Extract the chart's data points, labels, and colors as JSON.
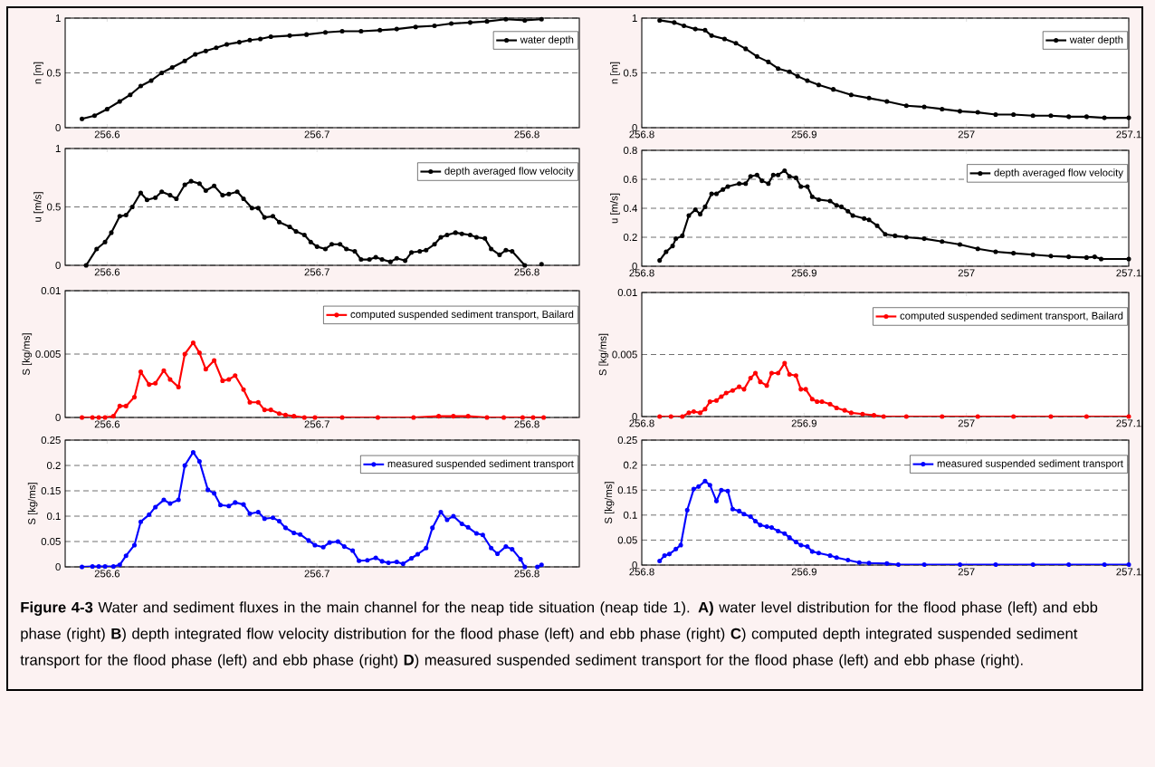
{
  "chart_data": [
    {
      "type": "line",
      "ylabel": "n [m]",
      "xlim": [
        256.58,
        256.825
      ],
      "ylim": [
        0,
        1
      ],
      "xticks": [
        256.6,
        256.7,
        256.8
      ],
      "yticks": [
        0,
        0.5,
        1
      ],
      "grid": "y",
      "legend": "top right",
      "marker": "circle",
      "line_style": "solid",
      "x": [
        256.588,
        256.594,
        256.6,
        256.606,
        256.611,
        256.616,
        256.621,
        256.626,
        256.631,
        256.637,
        256.642,
        256.647,
        256.652,
        256.657,
        256.663,
        256.668,
        256.673,
        256.678,
        256.687,
        256.695,
        256.704,
        256.712,
        256.721,
        256.73,
        256.738,
        256.747,
        256.756,
        256.764,
        256.773,
        256.781,
        256.79,
        256.799,
        256.807
      ],
      "series": [
        {
          "name": "water depth",
          "color": "#000000",
          "values": [
            0.08,
            0.11,
            0.17,
            0.24,
            0.3,
            0.38,
            0.43,
            0.5,
            0.55,
            0.61,
            0.67,
            0.7,
            0.73,
            0.76,
            0.78,
            0.8,
            0.81,
            0.83,
            0.84,
            0.85,
            0.87,
            0.88,
            0.88,
            0.89,
            0.9,
            0.92,
            0.93,
            0.95,
            0.96,
            0.97,
            0.99,
            0.98,
            0.99
          ]
        }
      ]
    },
    {
      "type": "line",
      "ylabel": "n [m]",
      "xlim": [
        256.8,
        257.1
      ],
      "ylim": [
        0,
        1
      ],
      "xticks": [
        256.8,
        256.9,
        257,
        257.1
      ],
      "yticks": [
        0,
        0.5,
        1
      ],
      "grid": "y",
      "legend": "top right",
      "marker": "circle",
      "line_style": "solid",
      "x": [
        256.811,
        256.82,
        256.826,
        256.833,
        256.839,
        256.843,
        256.851,
        256.858,
        256.864,
        256.871,
        256.878,
        256.884,
        256.891,
        256.896,
        256.902,
        256.909,
        256.918,
        256.929,
        256.94,
        256.951,
        256.963,
        256.974,
        256.985,
        256.996,
        257.007,
        257.018,
        257.029,
        257.041,
        257.052,
        257.063,
        257.074,
        257.085,
        257.1
      ],
      "series": [
        {
          "name": "water depth",
          "color": "#000000",
          "values": [
            0.98,
            0.96,
            0.93,
            0.9,
            0.89,
            0.84,
            0.81,
            0.77,
            0.72,
            0.65,
            0.6,
            0.54,
            0.51,
            0.47,
            0.43,
            0.39,
            0.35,
            0.3,
            0.27,
            0.24,
            0.2,
            0.19,
            0.17,
            0.15,
            0.14,
            0.12,
            0.12,
            0.11,
            0.11,
            0.1,
            0.1,
            0.09,
            0.09
          ]
        }
      ]
    },
    {
      "type": "line",
      "ylabel": "u [m/s]",
      "xlim": [
        256.58,
        256.825
      ],
      "ylim": [
        0,
        1
      ],
      "xticks": [
        256.6,
        256.7,
        256.8
      ],
      "yticks": [
        0,
        0.5,
        1
      ],
      "grid": "y",
      "legend": "top right",
      "marker": "circle",
      "line_style": "solid",
      "x": [
        256.59,
        256.595,
        256.599,
        256.602,
        256.606,
        256.609,
        256.612,
        256.616,
        256.619,
        256.623,
        256.626,
        256.63,
        256.633,
        256.637,
        256.64,
        256.644,
        256.647,
        256.651,
        256.655,
        256.658,
        256.662,
        256.665,
        256.669,
        256.672,
        256.675,
        256.679,
        256.682,
        256.687,
        256.69,
        256.694,
        256.697,
        256.7,
        256.704,
        256.707,
        256.711,
        256.714,
        256.718,
        256.721,
        256.725,
        256.728,
        256.731,
        256.735,
        256.738,
        256.742,
        256.745,
        256.749,
        256.752,
        256.756,
        256.759,
        256.762,
        256.766,
        256.769,
        256.773,
        256.776,
        256.78,
        256.783,
        256.787,
        256.79,
        256.793,
        256.799,
        256.803,
        256.807
      ],
      "series": [
        {
          "name": "depth averaged flow velocity",
          "color": "#000000",
          "values": [
            0,
            0.14,
            0.2,
            0.28,
            0.42,
            0.43,
            0.5,
            0.62,
            0.56,
            0.58,
            0.63,
            0.6,
            0.57,
            0.69,
            0.72,
            0.7,
            0.64,
            0.68,
            0.6,
            0.61,
            0.63,
            0.57,
            0.49,
            0.49,
            0.41,
            0.42,
            0.37,
            0.33,
            0.29,
            0.26,
            0.2,
            0.16,
            0.14,
            0.18,
            0.18,
            0.14,
            0.12,
            0.05,
            0.05,
            0.07,
            0.05,
            0.03,
            0.06,
            0.04,
            0.11,
            0.12,
            0.13,
            0.18,
            0.24,
            0.26,
            0.28,
            0.27,
            0.26,
            0.24,
            0.23,
            0.14,
            0.09,
            0.13,
            0.12,
            0,
            null,
            0.01
          ]
        }
      ]
    },
    {
      "type": "line",
      "ylabel": "u [m/s]",
      "xlim": [
        256.8,
        257.1
      ],
      "ylim": [
        0,
        0.8
      ],
      "xticks": [
        256.8,
        256.9,
        257,
        257.1
      ],
      "yticks": [
        0,
        0.2,
        0.4,
        0.6,
        0.8
      ],
      "grid": "y",
      "legend": "top right",
      "marker": "circle",
      "line_style": "solid",
      "x": [
        256.811,
        256.815,
        256.819,
        256.821,
        256.825,
        256.829,
        256.833,
        256.836,
        256.839,
        256.843,
        256.846,
        256.85,
        256.853,
        256.86,
        256.864,
        256.867,
        256.871,
        256.874,
        256.878,
        256.881,
        256.884,
        256.888,
        256.891,
        256.895,
        256.898,
        256.902,
        256.905,
        256.909,
        256.916,
        256.92,
        256.923,
        256.927,
        256.93,
        256.937,
        256.94,
        256.945,
        256.95,
        256.956,
        256.963,
        256.974,
        256.985,
        256.996,
        257.007,
        257.018,
        257.029,
        257.041,
        257.052,
        257.063,
        257.074,
        257.079,
        257.083,
        257.1
      ],
      "series": [
        {
          "name": "depth averaged flow velocity",
          "color": "#000000",
          "values": [
            0.04,
            0.1,
            0.14,
            0.19,
            0.21,
            0.35,
            0.39,
            0.36,
            0.41,
            0.5,
            0.5,
            0.53,
            0.55,
            0.57,
            0.57,
            0.62,
            0.63,
            0.59,
            0.57,
            0.63,
            0.63,
            0.66,
            0.62,
            0.61,
            0.55,
            0.55,
            0.48,
            0.46,
            0.45,
            0.42,
            0.41,
            0.38,
            0.35,
            0.33,
            0.32,
            0.28,
            0.22,
            0.21,
            0.2,
            0.19,
            0.17,
            0.15,
            0.12,
            0.1,
            0.09,
            0.08,
            0.07,
            0.065,
            0.06,
            0.065,
            0.05,
            0.05
          ]
        }
      ]
    },
    {
      "type": "line",
      "ylabel": "S [kg/ms]",
      "xlim": [
        256.58,
        256.825
      ],
      "ylim": [
        0,
        0.01
      ],
      "xticks": [
        256.6,
        256.7,
        256.8
      ],
      "yticks": [
        0,
        0.005,
        0.01
      ],
      "grid": "y",
      "legend": "top right",
      "marker": "circle",
      "line_style": "solid",
      "x": [
        256.588,
        256.593,
        256.596,
        256.599,
        256.603,
        256.606,
        256.609,
        256.613,
        256.616,
        256.62,
        256.623,
        256.627,
        256.63,
        256.634,
        256.637,
        256.641,
        256.644,
        256.647,
        256.651,
        256.655,
        256.658,
        256.661,
        256.665,
        256.668,
        256.672,
        256.675,
        256.678,
        256.682,
        256.685,
        256.689,
        256.694,
        256.699,
        256.712,
        256.729,
        256.746,
        256.758,
        256.765,
        256.772,
        256.781,
        256.789,
        256.798,
        256.803,
        256.808
      ],
      "series": [
        {
          "name": "computed suspended sediment transport, Bailard",
          "color": "#ff0000",
          "values": [
            0,
            0,
            0,
            0,
            0.0001,
            0.0009,
            0.0009,
            0.0016,
            0.0036,
            0.0026,
            0.0027,
            0.0037,
            0.003,
            0.0024,
            0.005,
            0.0059,
            0.0051,
            0.0038,
            0.0045,
            0.0029,
            0.003,
            0.0033,
            0.0022,
            0.0012,
            0.0012,
            0.0006,
            0.0006,
            0.0003,
            0.0002,
            0.0001,
            0,
            0,
            0,
            0,
            0,
            0.0001,
            0.0001,
            0.0001,
            0,
            0,
            0,
            0,
            0
          ]
        }
      ]
    },
    {
      "type": "line",
      "ylabel": "S [kg/ms]",
      "xlim": [
        256.8,
        257.1
      ],
      "ylim": [
        0,
        0.01
      ],
      "xticks": [
        256.8,
        256.9,
        257,
        257.1
      ],
      "yticks": [
        0,
        0.005,
        0.01
      ],
      "grid": "y",
      "legend": "top right",
      "marker": "circle",
      "line_style": "solid",
      "x": [
        256.811,
        256.818,
        256.825,
        256.829,
        256.832,
        256.836,
        256.839,
        256.842,
        256.846,
        256.849,
        256.852,
        256.856,
        256.86,
        256.863,
        256.867,
        256.87,
        256.873,
        256.877,
        256.88,
        256.884,
        256.888,
        256.891,
        256.895,
        256.898,
        256.901,
        256.905,
        256.908,
        256.911,
        256.916,
        256.92,
        256.925,
        256.929,
        256.936,
        256.943,
        256.949,
        256.963,
        256.985,
        257.007,
        257.029,
        257.052,
        257.074,
        257.1
      ],
      "series": [
        {
          "name": "computed suspended sediment transport, Bailard",
          "color": "#ff0000",
          "values": [
            0,
            0,
            0,
            0.0003,
            0.0004,
            0.0003,
            0.0006,
            0.0012,
            0.0013,
            0.0016,
            0.0019,
            0.0021,
            0.0024,
            0.0022,
            0.0031,
            0.0035,
            0.0028,
            0.0025,
            0.0035,
            0.0035,
            0.0043,
            0.0034,
            0.0033,
            0.0022,
            0.0022,
            0.0014,
            0.0012,
            0.0012,
            0.001,
            0.0007,
            0.0005,
            0.0003,
            0.0002,
            0.0001,
            0,
            0,
            0,
            0,
            0,
            0,
            0,
            0
          ]
        }
      ]
    },
    {
      "type": "line",
      "ylabel": "S [kg/ms]",
      "xlim": [
        256.58,
        256.825
      ],
      "ylim": [
        0,
        0.25
      ],
      "xticks": [
        256.6,
        256.7,
        256.8
      ],
      "yticks": [
        0,
        0.05,
        0.1,
        0.15,
        0.2,
        0.25
      ],
      "grid": "y",
      "legend": "top right",
      "marker": "circle",
      "line_style": "solid",
      "x": [
        256.588,
        256.593,
        256.596,
        256.599,
        256.603,
        256.606,
        256.609,
        256.613,
        256.616,
        256.62,
        256.623,
        256.627,
        256.63,
        256.634,
        256.637,
        256.641,
        256.644,
        256.648,
        256.651,
        256.654,
        256.658,
        256.661,
        256.665,
        256.668,
        256.672,
        256.675,
        256.679,
        256.682,
        256.685,
        256.689,
        256.692,
        256.696,
        256.699,
        256.703,
        256.706,
        256.71,
        256.713,
        256.717,
        256.72,
        256.724,
        256.728,
        256.731,
        256.734,
        256.738,
        256.741,
        256.745,
        256.748,
        256.752,
        256.755,
        256.759,
        256.762,
        256.765,
        256.769,
        256.772,
        256.776,
        256.779,
        256.783,
        256.786,
        256.79,
        256.793,
        256.797,
        256.799,
        256.802,
        256.805,
        256.807
      ],
      "series": [
        {
          "name": "measured suspended sediment transport",
          "color": "#0000ff",
          "values": [
            0,
            0.001,
            0.001,
            0.001,
            0.001,
            0.004,
            0.022,
            0.043,
            0.089,
            0.103,
            0.118,
            0.132,
            0.125,
            0.132,
            0.2,
            0.226,
            0.208,
            0.152,
            0.145,
            0.122,
            0.12,
            0.127,
            0.123,
            0.105,
            0.108,
            0.095,
            0.097,
            0.09,
            0.077,
            0.067,
            0.064,
            0.052,
            0.043,
            0.039,
            0.048,
            0.05,
            0.04,
            0.032,
            0.012,
            0.013,
            0.018,
            0.011,
            0.008,
            0.01,
            0.006,
            0.017,
            0.025,
            0.037,
            0.077,
            0.108,
            0.093,
            0.1,
            0.085,
            0.078,
            0.066,
            0.063,
            0.037,
            0.026,
            0.04,
            0.035,
            0.015,
            0,
            null,
            0,
            0.004
          ]
        }
      ],
      "annotations": [
        "**Figure 4-3** Water and sediment fluxes in the main channel for the neap tide situation (neap tide 1). **A)** water level distribution for the flood phase (left) and ebb phase (right) **B**) depth integrated flow velocity distribution for the flood phase (left) and ebb phase (right) **C**) computed depth integrated suspended sediment transport for the flood phase (left) and ebb phase (right) **D**) measured suspended sediment transport for the flood phase (left) and ebb phase (right)."
      ]
    },
    {
      "type": "line",
      "ylabel": "S [kg/ms]",
      "xlim": [
        256.8,
        257.1
      ],
      "ylim": [
        0,
        0.25
      ],
      "xticks": [
        256.8,
        256.9,
        257,
        257.1
      ],
      "yticks": [
        0,
        0.05,
        0.1,
        0.15,
        0.2,
        0.25
      ],
      "grid": "y",
      "legend": "top right",
      "marker": "circle",
      "line_style": "solid",
      "x": [
        256.811,
        256.814,
        256.817,
        256.821,
        256.824,
        256.828,
        256.832,
        256.835,
        256.839,
        256.842,
        256.846,
        256.849,
        256.853,
        256.856,
        256.86,
        256.863,
        256.867,
        256.87,
        256.873,
        256.877,
        256.88,
        256.884,
        256.888,
        256.891,
        256.895,
        256.898,
        256.902,
        256.905,
        256.909,
        256.916,
        256.92,
        256.927,
        256.934,
        256.94,
        256.951,
        256.958,
        256.974,
        256.996,
        257.018,
        257.041,
        257.063,
        257.085,
        257.1
      ],
      "series": [
        {
          "name": "measured suspended sediment transport",
          "color": "#0000ff",
          "values": [
            0.008,
            0.019,
            0.022,
            0.032,
            0.04,
            0.11,
            0.152,
            0.157,
            0.168,
            0.16,
            0.128,
            0.15,
            0.148,
            0.112,
            0.108,
            0.102,
            0.097,
            0.088,
            0.08,
            0.077,
            0.075,
            0.068,
            0.063,
            0.055,
            0.046,
            0.04,
            0.037,
            0.027,
            0.024,
            0.019,
            0.015,
            0.01,
            0.005,
            0.004,
            0.003,
            0.001,
            0.001,
            0.001,
            0.001,
            0.001,
            0.001,
            0.001,
            0.001
          ]
        }
      ]
    }
  ]
}
